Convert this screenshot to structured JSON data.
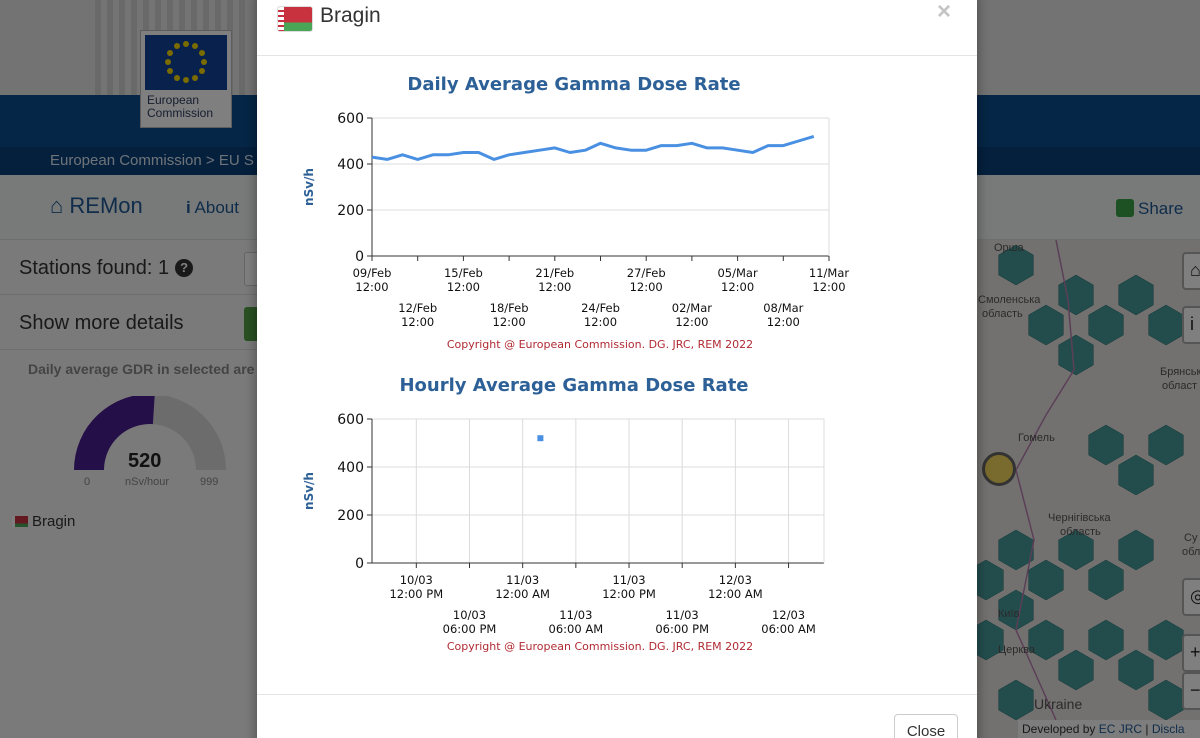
{
  "page": {
    "org_name_line1": "European",
    "org_name_line2": "Commission",
    "breadcrumb": "European Commission > EU S",
    "nav": {
      "home": "REMon",
      "about": "About",
      "share": "Share"
    },
    "sidebar": {
      "stations_found_label": "Stations found:",
      "stations_found_count": "1",
      "show_more": "Show more details",
      "gdr_title": "Daily average GDR in selected are",
      "gauge": {
        "value": "520",
        "min": "0",
        "max": "999",
        "unit": "nSv/hour",
        "fraction": 0.52
      },
      "station_name": "Bragin"
    },
    "map": {
      "labels": [
        "Орша",
        "Брянська",
        "област",
        "Смоленська",
        "область",
        "Гомель",
        "Чернігівська",
        "область",
        "Київ",
        "Церква",
        "Ukraine",
        "Су",
        "обл"
      ],
      "footer_prefix": "Developed by",
      "footer_link": "EC JRC",
      "footer_sep": "|",
      "footer_suffix": "Discla"
    }
  },
  "modal": {
    "title": "Bragin",
    "close_x": "×",
    "close_button": "Close"
  },
  "chart_data": [
    {
      "type": "line",
      "title": "Daily Average Gamma Dose Rate",
      "ylabel": "nSv/h",
      "xlabel": "",
      "ylim": [
        0,
        600
      ],
      "yticks": [
        "0",
        "200",
        "400",
        "600"
      ],
      "x_ticks_upper": [
        [
          "09/Feb",
          "12:00"
        ],
        [
          "15/Feb",
          "12:00"
        ],
        [
          "21/Feb",
          "12:00"
        ],
        [
          "27/Feb",
          "12:00"
        ],
        [
          "05/Mar",
          "12:00"
        ],
        [
          "11/Mar",
          "12:00"
        ]
      ],
      "x_ticks_lower": [
        [
          "12/Feb",
          "12:00"
        ],
        [
          "18/Feb",
          "12:00"
        ],
        [
          "24/Feb",
          "12:00"
        ],
        [
          "02/Mar",
          "12:00"
        ],
        [
          "08/Mar",
          "12:00"
        ]
      ],
      "x_range_days": [
        0,
        30
      ],
      "series": [
        {
          "name": "Bragin",
          "color": "#4a90e2",
          "x": [
            0,
            1,
            2,
            3,
            4,
            5,
            6,
            7,
            8,
            9,
            10,
            11,
            12,
            13,
            14,
            15,
            16,
            17,
            18,
            19,
            20,
            21,
            22,
            23,
            24,
            25,
            26,
            27,
            28,
            29
          ],
          "values": [
            430,
            420,
            440,
            420,
            440,
            440,
            450,
            450,
            420,
            440,
            450,
            460,
            470,
            450,
            460,
            490,
            470,
            460,
            460,
            480,
            480,
            490,
            470,
            470,
            460,
            450,
            480,
            480,
            500,
            520
          ]
        }
      ],
      "credit": "Copyright @ European Commission. DG. JRC, REM 2022"
    },
    {
      "type": "scatter",
      "title": "Hourly Average Gamma Dose Rate",
      "ylabel": "nSv/h",
      "xlabel": "",
      "ylim": [
        0,
        600
      ],
      "yticks": [
        "0",
        "200",
        "400",
        "600"
      ],
      "x_ticks_upper": [
        [
          "10/03",
          "12:00 PM"
        ],
        [
          "11/03",
          "12:00 AM"
        ],
        [
          "11/03",
          "12:00 PM"
        ],
        [
          "12/03",
          "12:00 AM"
        ]
      ],
      "x_ticks_lower": [
        [
          "10/03",
          "06:00 PM"
        ],
        [
          "11/03",
          "06:00 AM"
        ],
        [
          "11/03",
          "06:00 PM"
        ],
        [
          "12/03",
          "06:00 AM"
        ]
      ],
      "x_range_hours": [
        -5,
        46
      ],
      "series": [
        {
          "name": "Bragin",
          "color": "#4a90e2",
          "x": [
            14
          ],
          "values": [
            520
          ]
        }
      ],
      "credit": "Copyright @ European Commission. DG. JRC, REM 2022"
    }
  ]
}
